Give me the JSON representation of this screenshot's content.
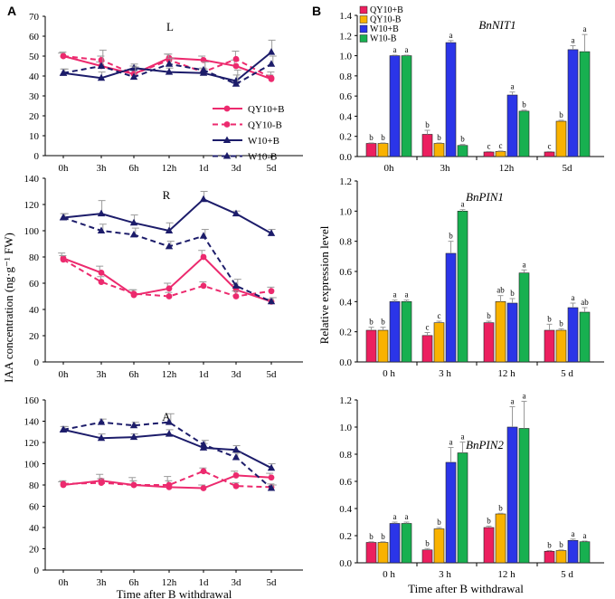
{
  "panel_labels": {
    "left": "A",
    "right": "B"
  },
  "colors": {
    "QY10+B": "#ec1f5f",
    "QY10-B": "#f9b200",
    "W10+B": "#2b35e8",
    "W10-B": "#18b050",
    "line_qy": "#ec2a6e",
    "line_w": "#1c1c6a",
    "error": "#9a9a9a"
  },
  "left_shared": {
    "ylabel": "IAA concentration (ng·g⁻¹ FW)",
    "xlabel": "Time after B withdrawal"
  },
  "right_shared": {
    "ylabel": "Relative expression level",
    "xlabel": "Time after B withdrawal"
  },
  "chart_data": [
    {
      "id": "L",
      "type": "line",
      "title": "L",
      "categories": [
        "0h",
        "3h",
        "6h",
        "12h",
        "1d",
        "3d",
        "5d"
      ],
      "ylim": [
        0,
        70
      ],
      "yticks": [
        0,
        10,
        20,
        30,
        40,
        50,
        60,
        70
      ],
      "legend": [
        "QY10+B",
        "QY10-B",
        "W10+B",
        "W10-B"
      ],
      "series": [
        {
          "name": "QY10+B",
          "style": "solid",
          "color": "line_qy",
          "marker": "circle",
          "values": [
            50,
            45,
            41,
            49,
            48,
            45,
            38.5
          ],
          "err": [
            1.5,
            2,
            2,
            2,
            2,
            3,
            2
          ]
        },
        {
          "name": "QY10-B",
          "style": "dashed",
          "color": "line_qy",
          "marker": "circle",
          "values": [
            50,
            48,
            41,
            48,
            42,
            48.5,
            39
          ],
          "err": [
            2,
            2,
            4,
            3,
            2,
            4,
            3
          ]
        },
        {
          "name": "W10+B",
          "style": "solid",
          "color": "line_w",
          "marker": "triangle",
          "values": [
            41.5,
            39,
            44,
            42,
            41.5,
            37.5,
            52
          ],
          "err": [
            2,
            3,
            2,
            2,
            2,
            3,
            6
          ]
        },
        {
          "name": "W10-B",
          "style": "dashed",
          "color": "line_w",
          "marker": "triangle",
          "values": [
            41.5,
            45,
            39.5,
            46,
            43,
            36,
            46
          ],
          "err": [
            2,
            8,
            5,
            3,
            4,
            7,
            4
          ]
        }
      ]
    },
    {
      "id": "R",
      "type": "line",
      "title": "R",
      "categories": [
        "0h",
        "3h",
        "6h",
        "12h",
        "1d",
        "3d",
        "5d"
      ],
      "ylim": [
        0,
        140
      ],
      "yticks": [
        0,
        20,
        40,
        60,
        80,
        100,
        120,
        140
      ],
      "series": [
        {
          "name": "QY10+B",
          "style": "solid",
          "color": "line_qy",
          "marker": "circle",
          "values": [
            79,
            68,
            51,
            56,
            80,
            55,
            46
          ],
          "err": [
            4,
            5,
            4,
            4,
            5,
            4,
            2
          ]
        },
        {
          "name": "QY10-B",
          "style": "dashed",
          "color": "line_qy",
          "marker": "circle",
          "values": [
            78,
            61,
            52,
            50,
            58,
            50,
            54
          ],
          "err": [
            3,
            4,
            3,
            3,
            3,
            4,
            3
          ]
        },
        {
          "name": "W10+B",
          "style": "solid",
          "color": "line_w",
          "marker": "triangle",
          "values": [
            110,
            113,
            106,
            100,
            124,
            113,
            98
          ],
          "err": [
            3,
            10,
            6,
            6,
            6,
            2,
            3
          ]
        },
        {
          "name": "W10-B",
          "style": "dashed",
          "color": "line_w",
          "marker": "triangle",
          "values": [
            110,
            100,
            97,
            88,
            96,
            58,
            46
          ],
          "err": [
            3,
            5,
            5,
            4,
            5,
            5,
            3
          ]
        }
      ]
    },
    {
      "id": "A",
      "type": "line",
      "title": "A",
      "categories": [
        "0h",
        "3h",
        "6h",
        "12h",
        "1d",
        "3d",
        "5d"
      ],
      "ylim": [
        0,
        160
      ],
      "yticks": [
        0,
        20,
        40,
        60,
        80,
        100,
        120,
        140,
        160
      ],
      "xlabel": "Time after B withdrawal",
      "series": [
        {
          "name": "QY10+B",
          "style": "solid",
          "color": "line_qy",
          "marker": "circle",
          "values": [
            80,
            84,
            80,
            78,
            77,
            89,
            87
          ],
          "err": [
            3,
            6,
            7,
            10,
            3,
            4,
            4
          ]
        },
        {
          "name": "QY10-B",
          "style": "dashed",
          "color": "line_qy",
          "marker": "circle",
          "values": [
            81,
            82,
            80,
            80,
            93,
            79,
            78
          ],
          "err": [
            3,
            4,
            4,
            4,
            3,
            3,
            3
          ]
        },
        {
          "name": "W10+B",
          "style": "solid",
          "color": "line_w",
          "marker": "triangle",
          "values": [
            132,
            124,
            125,
            128,
            115,
            113,
            96
          ],
          "err": [
            3,
            4,
            3,
            4,
            4,
            4,
            4
          ]
        },
        {
          "name": "W10-B",
          "style": "dashed",
          "color": "line_w",
          "marker": "triangle",
          "values": [
            132,
            139,
            136,
            139,
            118,
            106,
            77
          ],
          "err": [
            3,
            3,
            3,
            8,
            4,
            4,
            3
          ]
        }
      ]
    },
    {
      "id": "BnNIT1",
      "type": "bar",
      "title": "BnNIT1",
      "categories": [
        "0h",
        "3h",
        "12h",
        "5d"
      ],
      "ylim": [
        0,
        1.4
      ],
      "yticks": [
        "0.0",
        "0.2",
        "0.4",
        "0.6",
        "0.8",
        "1.0",
        "1.2",
        "1.4"
      ],
      "legend": [
        "QY10+B",
        "QY10-B",
        "W10+B",
        "W10-B"
      ],
      "series": [
        {
          "name": "QY10+B",
          "values": [
            0.13,
            0.22,
            0.045,
            0.045
          ],
          "err": [
            0.005,
            0.04,
            0.005,
            0.005
          ],
          "letters": [
            "b",
            "b",
            "c",
            "c"
          ]
        },
        {
          "name": "QY10-B",
          "values": [
            0.13,
            0.13,
            0.05,
            0.35
          ],
          "err": [
            0.005,
            0.005,
            0.005,
            0.01
          ],
          "letters": [
            "b",
            "b",
            "c",
            "b"
          ]
        },
        {
          "name": "W10+B",
          "values": [
            1.0,
            1.13,
            0.61,
            1.06
          ],
          "err": [
            0.005,
            0.02,
            0.03,
            0.04
          ],
          "letters": [
            "a",
            "a",
            "a",
            "a"
          ]
        },
        {
          "name": "W10-B",
          "values": [
            1.0,
            0.11,
            0.45,
            1.04
          ],
          "err": [
            0.005,
            0.01,
            0.01,
            0.17
          ],
          "letters": [
            "a",
            "b",
            "b",
            "a"
          ]
        }
      ]
    },
    {
      "id": "BnPIN1",
      "type": "bar",
      "title": "BnPIN1",
      "categories": [
        "0 h",
        "3 h",
        "12 h",
        "5 d"
      ],
      "ylim": [
        0,
        1.2
      ],
      "yticks": [
        "0.0",
        "0.2",
        "0.4",
        "0.6",
        "0.8",
        "1.0",
        "1.2"
      ],
      "series": [
        {
          "name": "QY10+B",
          "values": [
            0.21,
            0.175,
            0.26,
            0.21
          ],
          "err": [
            0.02,
            0.02,
            0.01,
            0.04
          ],
          "letters": [
            "b",
            "c",
            "b",
            "b"
          ]
        },
        {
          "name": "QY10-B",
          "values": [
            0.21,
            0.26,
            0.4,
            0.21
          ],
          "err": [
            0.02,
            0.01,
            0.04,
            0.01
          ],
          "letters": [
            "b",
            "c",
            "ab",
            "b"
          ]
        },
        {
          "name": "W10+B",
          "values": [
            0.4,
            0.72,
            0.39,
            0.36
          ],
          "err": [
            0.01,
            0.08,
            0.03,
            0.03
          ],
          "letters": [
            "a",
            "b",
            "b",
            "a"
          ]
        },
        {
          "name": "W10-B",
          "values": [
            0.4,
            1.0,
            0.59,
            0.33
          ],
          "err": [
            0.01,
            0.01,
            0.02,
            0.03
          ],
          "letters": [
            "a",
            "a",
            "a",
            "ab"
          ]
        }
      ]
    },
    {
      "id": "BnPIN2",
      "type": "bar",
      "title": "BnPIN2",
      "categories": [
        "0 h",
        "3 h",
        "12 h",
        "5 d"
      ],
      "ylim": [
        0,
        1.2
      ],
      "yticks": [
        "0.0",
        "0.2",
        "0.4",
        "0.6",
        "0.8",
        "1.0",
        "1.2"
      ],
      "xlabel": "Time after B withdrawal",
      "series": [
        {
          "name": "QY10+B",
          "values": [
            0.15,
            0.095,
            0.26,
            0.085
          ],
          "err": [
            0.005,
            0.01,
            0.01,
            0.005
          ],
          "letters": [
            "b",
            "b",
            "b",
            "b"
          ]
        },
        {
          "name": "QY10-B",
          "values": [
            0.15,
            0.25,
            0.36,
            0.09
          ],
          "err": [
            0.005,
            0.01,
            0.005,
            0.005
          ],
          "letters": [
            "b",
            "b",
            "b",
            "b"
          ]
        },
        {
          "name": "W10+B",
          "values": [
            0.29,
            0.74,
            1.0,
            0.165
          ],
          "err": [
            0.01,
            0.11,
            0.15,
            0.01
          ],
          "letters": [
            "a",
            "a",
            "a",
            "a"
          ]
        },
        {
          "name": "W10-B",
          "values": [
            0.29,
            0.81,
            0.99,
            0.155
          ],
          "err": [
            0.01,
            0.08,
            0.2,
            0.005
          ],
          "letters": [
            "a",
            "a",
            "a",
            "a"
          ]
        }
      ]
    }
  ]
}
